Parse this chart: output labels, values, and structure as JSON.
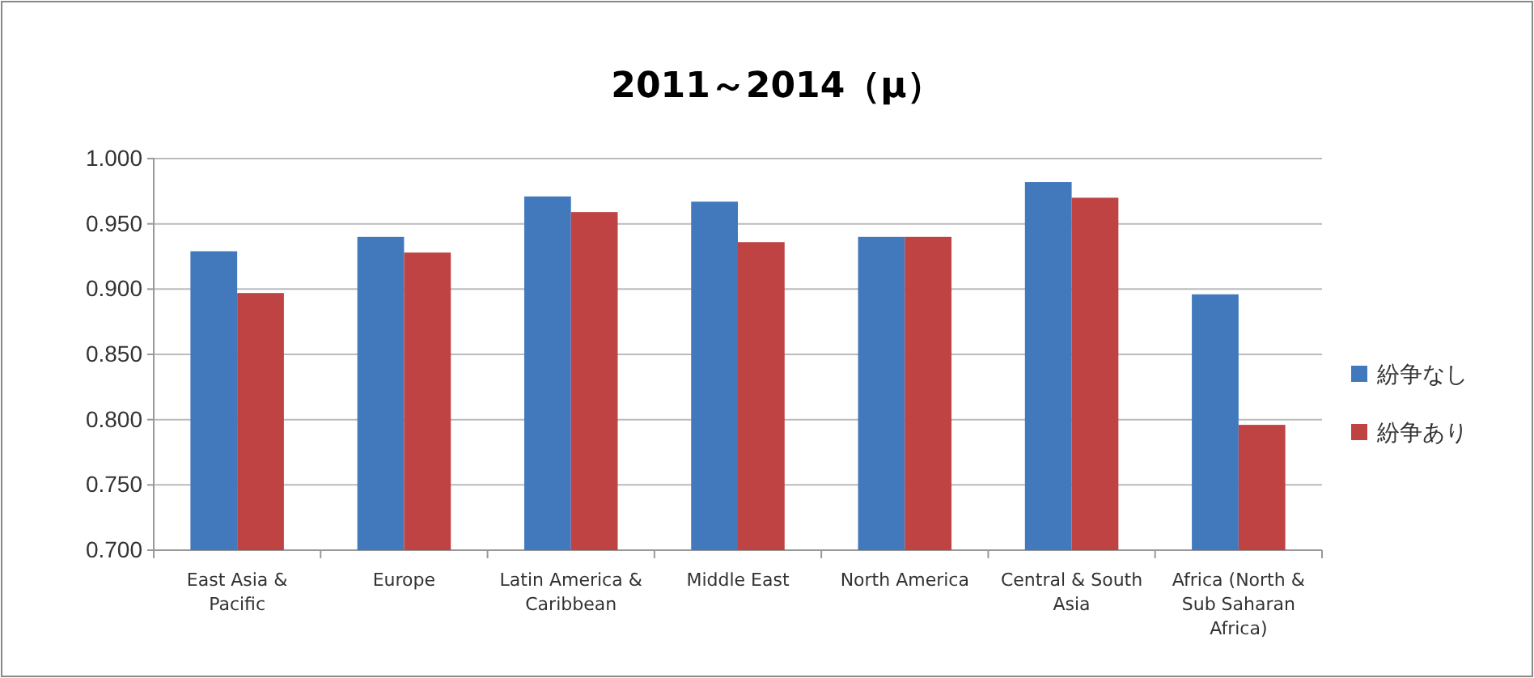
{
  "chart_data": {
    "type": "bar",
    "title": "2011～2014（μ）",
    "categories": [
      "East Asia & Pacific",
      "Europe",
      "Latin America & Caribbean",
      "Middle East",
      "North America",
      "Central & South Asia",
      "Africa (North & Sub Saharan Africa)"
    ],
    "series": [
      {
        "name": "紛争なし",
        "color": "#4279bd",
        "values": [
          0.929,
          0.94,
          0.971,
          0.967,
          0.94,
          0.982,
          0.896
        ]
      },
      {
        "name": "紛争あり",
        "color": "#be4342",
        "values": [
          0.897,
          0.928,
          0.959,
          0.936,
          0.94,
          0.97,
          0.796
        ]
      }
    ],
    "ylim": [
      0.7,
      1.0
    ],
    "yticks": [
      {
        "value": 0.7,
        "label": "0.700"
      },
      {
        "value": 0.75,
        "label": "0.750"
      },
      {
        "value": 0.8,
        "label": "0.800"
      },
      {
        "value": 0.85,
        "label": "0.850"
      },
      {
        "value": 0.9,
        "label": "0.900"
      },
      {
        "value": 0.95,
        "label": "0.950"
      },
      {
        "value": 1.0,
        "label": "1.000"
      }
    ],
    "grid": "y",
    "legend": "right"
  }
}
